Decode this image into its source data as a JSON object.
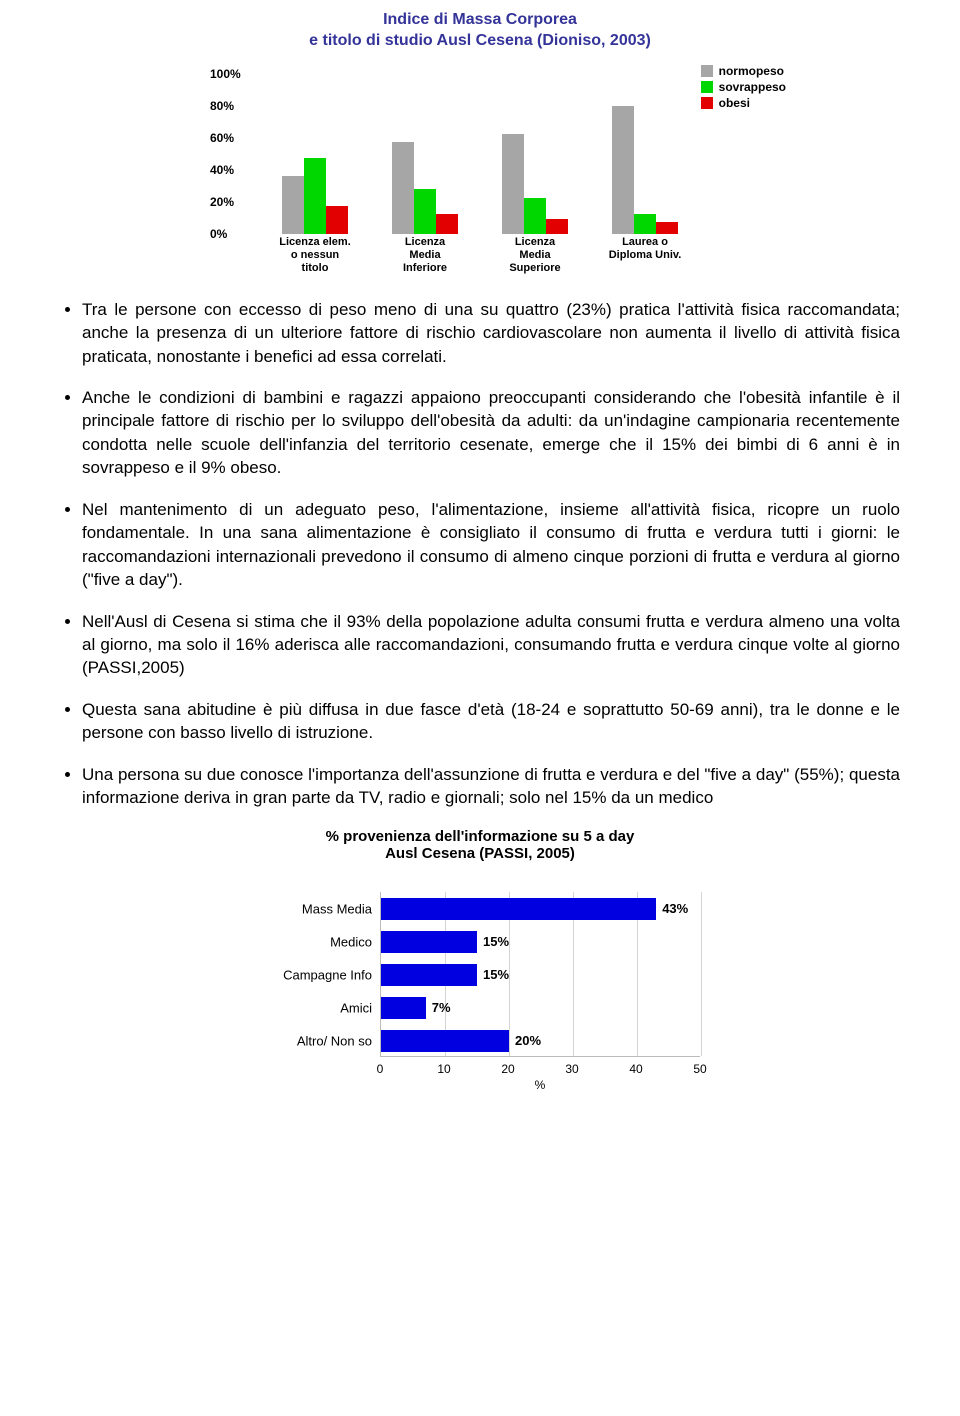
{
  "chart1": {
    "title_line1": "Indice di Massa Corporea",
    "title_line2": "e titolo di studio Ausl Cesena (Dioniso, 2003)",
    "type": "grouped-bar",
    "ylim": [
      0,
      100
    ],
    "ytick_step": 20,
    "yticks": [
      "0%",
      "20%",
      "40%",
      "60%",
      "80%",
      "100%"
    ],
    "categories": [
      "Licenza elem.\no nessun\ntitolo",
      "Licenza\nMedia\nInferiore",
      "Licenza\nMedia\nSuperiore",
      "Laurea o\nDiploma Univ."
    ],
    "series": [
      {
        "name": "normopeso",
        "color": "#a6a6a6",
        "values": [
          36,
          57,
          62,
          80
        ]
      },
      {
        "name": "sovrappeso",
        "color": "#00d600",
        "values": [
          47,
          28,
          22,
          12
        ]
      },
      {
        "name": "obesi",
        "color": "#e30000",
        "values": [
          17,
          12,
          9,
          7
        ]
      }
    ],
    "background_color": "#ffffff"
  },
  "bullets": [
    "Tra le persone con eccesso di peso meno di una su quattro (23%) pratica l'attività fisica raccomandata; anche la presenza di un ulteriore fattore di rischio cardiovascolare non aumenta il livello di attività fisica praticata, nonostante i benefici ad essa correlati.",
    "Anche le condizioni di bambini e ragazzi appaiono preoccupanti considerando che l'obesità infantile è il principale fattore di rischio per lo sviluppo dell'obesità da adulti: da un'indagine campionaria recentemente condotta nelle scuole dell'infanzia del territorio cesenate, emerge che il 15% dei bimbi di 6 anni è in sovrappeso e il 9% obeso.",
    "Nel mantenimento di un adeguato peso, l'alimentazione, insieme all'attività fisica, ricopre un ruolo fondamentale. In una sana alimentazione è consigliato il consumo di frutta e verdura tutti i giorni: le raccomandazioni internazionali prevedono il consumo di almeno cinque porzioni di frutta e verdura al giorno (\"five a day\").",
    "Nell'Ausl di Cesena si stima che il 93% della popolazione adulta consumi frutta e verdura almeno una volta al giorno, ma solo il 16% aderisca alle raccomandazioni, consumando frutta e verdura cinque volte al giorno (PASSI,2005)",
    "Questa sana abitudine è più diffusa in due fasce d'età (18-24 e soprattutto 50-69 anni), tra le donne e le persone con basso livello di istruzione.",
    "Una persona su due conosce l'importanza dell'assunzione di frutta e verdura e del \"five a day\" (55%); questa informazione deriva in gran parte da TV, radio e giornali; solo nel 15% da un medico"
  ],
  "chart2": {
    "title": "% provenienza dell'informazione su 5 a day",
    "subtitle": "Ausl Cesena  (PASSI, 2005)",
    "type": "horizontal-bar",
    "xlim": [
      0,
      50
    ],
    "xtick_step": 10,
    "xticks": [
      "0",
      "10",
      "20",
      "30",
      "40",
      "50"
    ],
    "xlabel": "%",
    "bar_color": "#0000e0",
    "categories": [
      "Mass Media",
      "Medico",
      "Campagne Info",
      "Amici",
      "Altro/ Non so"
    ],
    "values": [
      43,
      15,
      15,
      7,
      20
    ],
    "value_labels": [
      "43%",
      "15%",
      "15%",
      "7%",
      "20%"
    ]
  }
}
